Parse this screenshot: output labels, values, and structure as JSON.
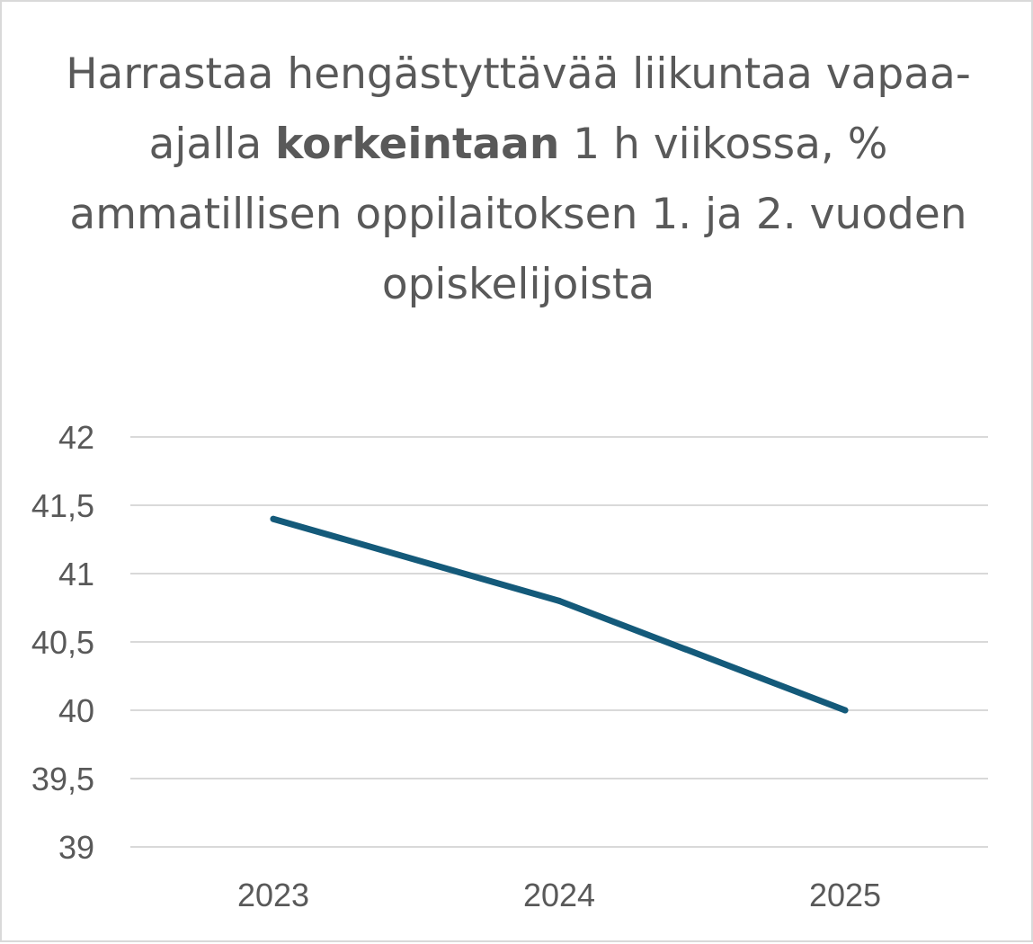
{
  "chart_data": {
    "type": "line",
    "title": "Harrastaa hengästyttävää liikuntaa vapaa-ajalla korkeintaan 1 h viikossa, % ammatillisen oppilaitoksen 1. ja 2. vuoden opiskelijoista",
    "title_parts": {
      "before": "Harrastaa hengästyttävää liikuntaa vapaa-ajalla ",
      "bold": "korkeintaan",
      "after": " 1 h viikossa, % ammatillisen oppilaitoksen 1. ja 2. vuoden opiskelijoista"
    },
    "categories": [
      "2023",
      "2024",
      "2025"
    ],
    "series": [
      {
        "values": [
          41.4,
          40.8,
          40.0
        ],
        "color": "#145a7a"
      }
    ],
    "ylim": [
      39,
      42
    ],
    "yticks": [
      42,
      41.5,
      41,
      40.5,
      40,
      39.5,
      39
    ],
    "ytick_labels": [
      "42",
      "41,5",
      "41",
      "40,5",
      "40",
      "39,5",
      "39"
    ],
    "grid": true,
    "gridline_color": "#d9d9d9",
    "legend": "none",
    "xlabel": "",
    "ylabel": ""
  }
}
